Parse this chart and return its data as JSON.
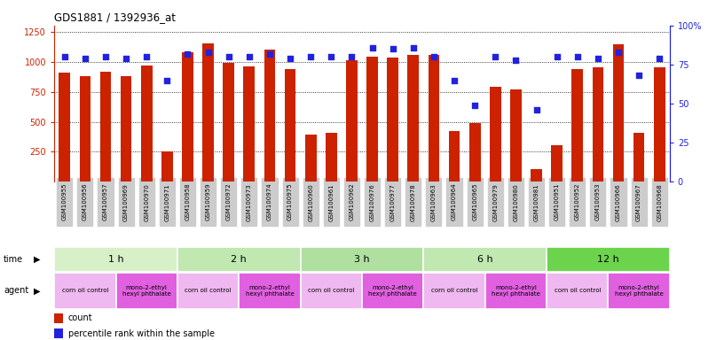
{
  "title": "GDS1881 / 1392936_at",
  "samples": [
    "GSM100955",
    "GSM100956",
    "GSM100957",
    "GSM100969",
    "GSM100970",
    "GSM100971",
    "GSM100958",
    "GSM100959",
    "GSM100972",
    "GSM100973",
    "GSM100974",
    "GSM100975",
    "GSM100960",
    "GSM100961",
    "GSM100962",
    "GSM100976",
    "GSM100977",
    "GSM100978",
    "GSM100963",
    "GSM100964",
    "GSM100965",
    "GSM100979",
    "GSM100980",
    "GSM100981",
    "GSM100951",
    "GSM100952",
    "GSM100953",
    "GSM100966",
    "GSM100967",
    "GSM100968"
  ],
  "counts": [
    910,
    880,
    915,
    880,
    970,
    255,
    1080,
    1150,
    990,
    960,
    1100,
    940,
    390,
    410,
    1010,
    1040,
    1035,
    1055,
    1055,
    420,
    490,
    790,
    770,
    105,
    305,
    940,
    950,
    1145,
    410,
    955
  ],
  "percentiles": [
    80,
    79,
    80,
    79,
    80,
    65,
    82,
    83,
    80,
    80,
    82,
    79,
    80,
    80,
    80,
    86,
    85,
    86,
    80,
    65,
    49,
    80,
    78,
    46,
    80,
    80,
    79,
    83,
    68,
    79
  ],
  "time_groups": [
    {
      "label": "1 h",
      "start": 0,
      "end": 6,
      "color": "#d8f0c8"
    },
    {
      "label": "2 h",
      "start": 6,
      "end": 12,
      "color": "#c0e8b0"
    },
    {
      "label": "3 h",
      "start": 12,
      "end": 18,
      "color": "#b0e0a0"
    },
    {
      "label": "6 h",
      "start": 18,
      "end": 24,
      "color": "#c0e8b0"
    },
    {
      "label": "12 h",
      "start": 24,
      "end": 30,
      "color": "#6cd44c"
    }
  ],
  "agent_groups": [
    {
      "label": "corn oil control",
      "start": 0,
      "end": 3,
      "color": "#f0b8f0"
    },
    {
      "label": "mono-2-ethyl\nhexyl phthalate",
      "start": 3,
      "end": 6,
      "color": "#e060e0"
    },
    {
      "label": "corn oil control",
      "start": 6,
      "end": 9,
      "color": "#f0b8f0"
    },
    {
      "label": "mono-2-ethyl\nhexyl phthalate",
      "start": 9,
      "end": 12,
      "color": "#e060e0"
    },
    {
      "label": "corn oil control",
      "start": 12,
      "end": 15,
      "color": "#f0b8f0"
    },
    {
      "label": "mono-2-ethyl\nhexyl phthalate",
      "start": 15,
      "end": 18,
      "color": "#e060e0"
    },
    {
      "label": "corn oil control",
      "start": 18,
      "end": 21,
      "color": "#f0b8f0"
    },
    {
      "label": "mono-2-ethyl\nhexyl phthalate",
      "start": 21,
      "end": 24,
      "color": "#e060e0"
    },
    {
      "label": "corn oil control",
      "start": 24,
      "end": 27,
      "color": "#f0b8f0"
    },
    {
      "label": "mono-2-ethyl\nhexyl phthalate",
      "start": 27,
      "end": 30,
      "color": "#e060e0"
    }
  ],
  "ylim_left": [
    0,
    1300
  ],
  "ylim_right": [
    0,
    100
  ],
  "yticks_left": [
    250,
    500,
    750,
    1000,
    1250
  ],
  "yticks_right": [
    0,
    25,
    50,
    75,
    100
  ],
  "bar_color": "#cc2200",
  "dot_color": "#2222dd",
  "tick_bg": "#cccccc",
  "bg_color": "#ffffff"
}
